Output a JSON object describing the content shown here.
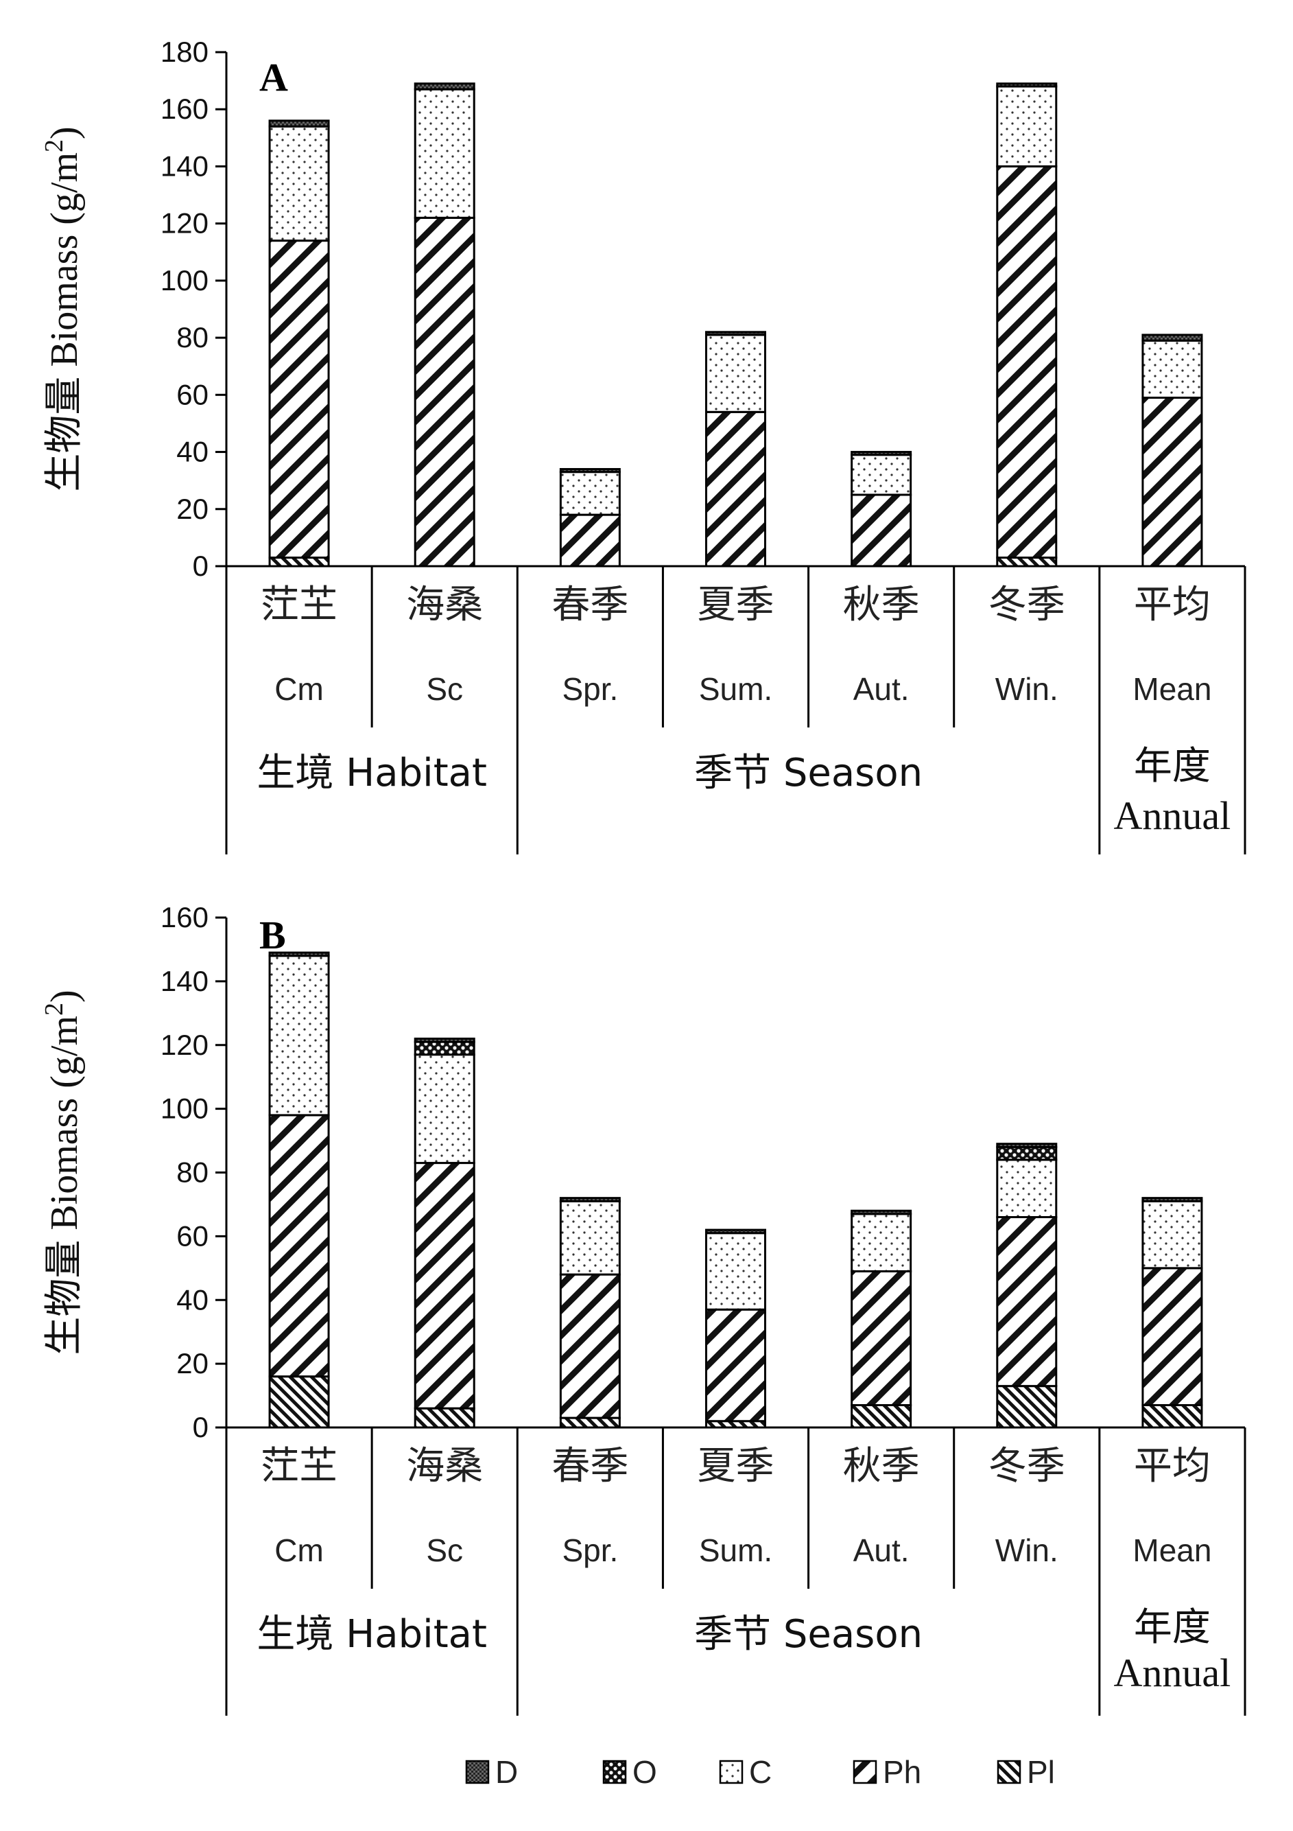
{
  "chart_data": [
    {
      "type": "bar",
      "stacked": true,
      "panel_label": "A",
      "ylabel": "生物量 Biomass (g/m2)",
      "ylim": [
        0,
        180
      ],
      "yticks": [
        0,
        20,
        40,
        60,
        80,
        100,
        120,
        140,
        160,
        180
      ],
      "categories_zh": [
        "茳芏",
        "海桑",
        "春季",
        "夏季",
        "秋季",
        "冬季",
        "平均"
      ],
      "categories": [
        "Cm",
        "Sc",
        "Spr.",
        "Sum.",
        "Aut.",
        "Win.",
        "Mean"
      ],
      "groups": [
        {
          "label_zh": "生境",
          "label_en": "Habitat",
          "span": [
            0,
            1
          ]
        },
        {
          "label_zh": "季节",
          "label_en": "Season",
          "span": [
            2,
            5
          ]
        },
        {
          "label_zh": "年度",
          "label_en": "Annual",
          "span": [
            6,
            6
          ]
        }
      ],
      "series": [
        {
          "name": "Pl",
          "pattern": "pl",
          "values": [
            3,
            0,
            0,
            0,
            0,
            3,
            0
          ]
        },
        {
          "name": "Ph",
          "pattern": "ph",
          "values": [
            111,
            122,
            18,
            54,
            25,
            137,
            59
          ]
        },
        {
          "name": "C",
          "pattern": "c",
          "values": [
            40,
            45,
            15,
            27,
            14,
            28,
            20
          ]
        },
        {
          "name": "O",
          "pattern": "o",
          "values": [
            0,
            0,
            0,
            0,
            0,
            0,
            0
          ]
        },
        {
          "name": "D",
          "pattern": "d",
          "values": [
            2,
            2,
            1,
            1,
            1,
            1,
            2
          ]
        }
      ]
    },
    {
      "type": "bar",
      "stacked": true,
      "panel_label": "B",
      "ylabel": "生物量 Biomass (g/m2)",
      "ylim": [
        0,
        160
      ],
      "yticks": [
        0,
        20,
        40,
        60,
        80,
        100,
        120,
        140,
        160
      ],
      "categories_zh": [
        "茳芏",
        "海桑",
        "春季",
        "夏季",
        "秋季",
        "冬季",
        "平均"
      ],
      "categories": [
        "Cm",
        "Sc",
        "Spr.",
        "Sum.",
        "Aut.",
        "Win.",
        "Mean"
      ],
      "groups": [
        {
          "label_zh": "生境",
          "label_en": "Habitat",
          "span": [
            0,
            1
          ]
        },
        {
          "label_zh": "季节",
          "label_en": "Season",
          "span": [
            2,
            5
          ]
        },
        {
          "label_zh": "年度",
          "label_en": "Annual",
          "span": [
            6,
            6
          ]
        }
      ],
      "series": [
        {
          "name": "Pl",
          "pattern": "pl",
          "values": [
            16,
            6,
            3,
            2,
            7,
            13,
            7
          ]
        },
        {
          "name": "Ph",
          "pattern": "ph",
          "values": [
            82,
            77,
            45,
            35,
            42,
            53,
            43
          ]
        },
        {
          "name": "C",
          "pattern": "c",
          "values": [
            50,
            34,
            23,
            24,
            18,
            18,
            21
          ]
        },
        {
          "name": "O",
          "pattern": "o",
          "values": [
            0,
            4,
            0,
            0,
            0,
            4,
            0
          ]
        },
        {
          "name": "D",
          "pattern": "d",
          "values": [
            1,
            1,
            1,
            1,
            1,
            1,
            1
          ]
        }
      ]
    }
  ],
  "legend": [
    {
      "name": "D",
      "pattern": "d"
    },
    {
      "name": "O",
      "pattern": "o"
    },
    {
      "name": "C",
      "pattern": "c"
    },
    {
      "name": "Ph",
      "pattern": "ph"
    },
    {
      "name": "Pl",
      "pattern": "pl"
    }
  ]
}
